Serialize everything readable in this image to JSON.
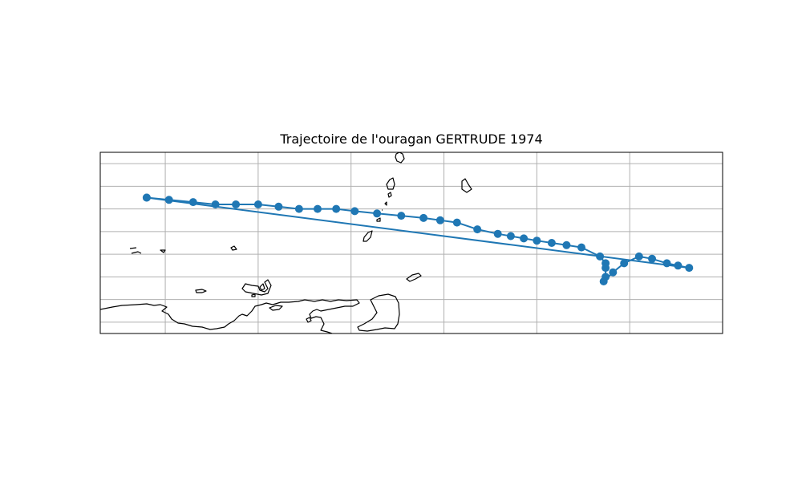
{
  "title": "Trajectoire de l'ouragan GERTRUDE 1974",
  "colors": {
    "track": "#1f77b4",
    "coastline": "#000000",
    "grid": "#b0b0b0",
    "frame": "#000000"
  },
  "map": {
    "type": "track",
    "projection": "PlateCarree",
    "grid": true,
    "lon_range": [
      -67.5,
      -34.0
    ],
    "lat_range": [
      8.5,
      16.5
    ],
    "gridline_lons": [
      -64,
      -59,
      -54,
      -49,
      -44,
      -39
    ],
    "gridline_lats": [
      9,
      10,
      11,
      12,
      13,
      14,
      15,
      16
    ],
    "track": {
      "name": "GERTRUDE",
      "year": 1974,
      "points": [
        {
          "lon": -65.0,
          "lat": 14.5
        },
        {
          "lon": -63.8,
          "lat": 14.4
        },
        {
          "lon": -62.5,
          "lat": 14.3
        },
        {
          "lon": -61.3,
          "lat": 14.2
        },
        {
          "lon": -60.2,
          "lat": 14.2
        },
        {
          "lon": -59.0,
          "lat": 14.2
        },
        {
          "lon": -57.9,
          "lat": 14.1
        },
        {
          "lon": -56.8,
          "lat": 14.0
        },
        {
          "lon": -55.8,
          "lat": 14.0
        },
        {
          "lon": -54.8,
          "lat": 14.0
        },
        {
          "lon": -53.8,
          "lat": 13.9
        },
        {
          "lon": -52.6,
          "lat": 13.8
        },
        {
          "lon": -51.3,
          "lat": 13.7
        },
        {
          "lon": -50.1,
          "lat": 13.6
        },
        {
          "lon": -49.2,
          "lat": 13.5
        },
        {
          "lon": -48.3,
          "lat": 13.4
        },
        {
          "lon": -47.2,
          "lat": 13.1
        },
        {
          "lon": -46.1,
          "lat": 12.9
        },
        {
          "lon": -45.4,
          "lat": 12.8
        },
        {
          "lon": -44.7,
          "lat": 12.7
        },
        {
          "lon": -44.0,
          "lat": 12.6
        },
        {
          "lon": -43.2,
          "lat": 12.5
        },
        {
          "lon": -42.4,
          "lat": 12.4
        },
        {
          "lon": -41.6,
          "lat": 12.3
        },
        {
          "lon": -40.6,
          "lat": 11.9
        },
        {
          "lon": -40.3,
          "lat": 11.6
        },
        {
          "lon": -40.3,
          "lat": 11.4
        },
        {
          "lon": -40.3,
          "lat": 11.0
        },
        {
          "lon": -40.4,
          "lat": 10.8
        },
        {
          "lon": -39.9,
          "lat": 11.2
        },
        {
          "lon": -39.3,
          "lat": 11.6
        },
        {
          "lon": -38.5,
          "lat": 11.9
        },
        {
          "lon": -37.8,
          "lat": 11.8
        },
        {
          "lon": -37.0,
          "lat": 11.6
        },
        {
          "lon": -36.4,
          "lat": 11.5
        },
        {
          "lon": -35.8,
          "lat": 11.4
        },
        {
          "lon": -65.0,
          "lat": 14.5
        }
      ]
    }
  }
}
